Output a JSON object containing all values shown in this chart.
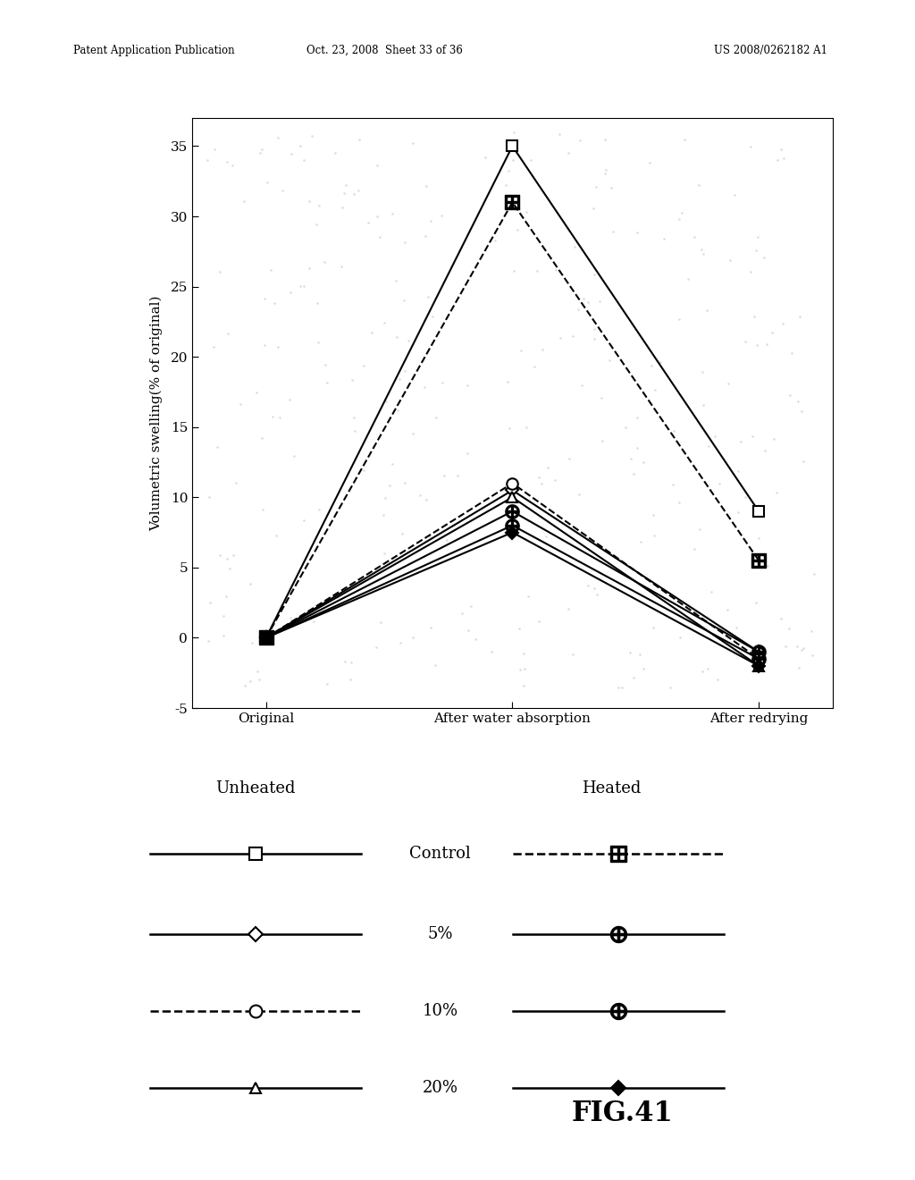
{
  "x_labels": [
    "Original",
    "After water absorption",
    "After redrying"
  ],
  "series": [
    {
      "label": "Unheated Control",
      "values": [
        0,
        35,
        9
      ],
      "linestyle": "solid",
      "marker": "square_open",
      "linewidth": 1.5,
      "color": "black",
      "zorder": 5
    },
    {
      "label": "Heated Control",
      "values": [
        0,
        31,
        5.5
      ],
      "linestyle": "dashed",
      "marker": "square_grid",
      "linewidth": 1.5,
      "color": "black",
      "zorder": 4
    },
    {
      "label": "Unheated 5%",
      "values": [
        0,
        10.5,
        -1.0
      ],
      "linestyle": "solid",
      "marker": "diamond_open",
      "linewidth": 1.5,
      "color": "black",
      "zorder": 6
    },
    {
      "label": "Heated 5%",
      "values": [
        0,
        9.0,
        -1.0
      ],
      "linestyle": "solid",
      "marker": "circle_plus",
      "linewidth": 1.5,
      "color": "black",
      "zorder": 6
    },
    {
      "label": "Unheated 10%",
      "values": [
        0,
        11.0,
        -1.5
      ],
      "linestyle": "dashed",
      "marker": "circle_open",
      "linewidth": 1.5,
      "color": "black",
      "zorder": 6
    },
    {
      "label": "Heated 10%",
      "values": [
        0,
        8.0,
        -1.5
      ],
      "linestyle": "solid",
      "marker": "circle_plus",
      "linewidth": 1.5,
      "color": "black",
      "zorder": 6
    },
    {
      "label": "Unheated 20%",
      "values": [
        0,
        10.0,
        -2.0
      ],
      "linestyle": "solid",
      "marker": "triangle_open",
      "linewidth": 1.5,
      "color": "black",
      "zorder": 6
    },
    {
      "label": "Heated 20%",
      "values": [
        0,
        7.5,
        -2.0
      ],
      "linestyle": "solid",
      "marker": "diamond_fill",
      "linewidth": 1.5,
      "color": "black",
      "zorder": 6
    }
  ],
  "ylabel": "Volumetric swelling(% of original)",
  "ylim": [
    -5,
    37
  ],
  "yticks": [
    -5,
    0,
    5,
    10,
    15,
    20,
    25,
    30,
    35
  ],
  "patent_header_left": "Patent Application Publication",
  "patent_header_mid": "Oct. 23, 2008  Sheet 33 of 36",
  "patent_header_right": "US 2008/0262182 A1",
  "fig41_label": "FIG.41",
  "background_color": "#ffffff"
}
